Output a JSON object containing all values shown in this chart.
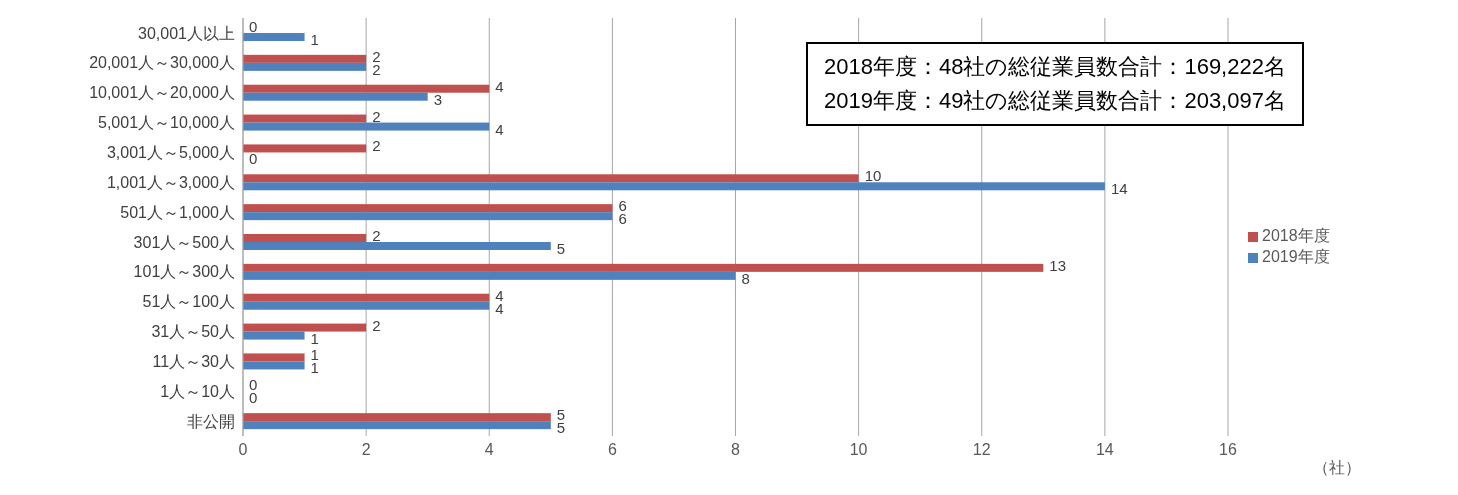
{
  "chart_data": {
    "type": "bar",
    "orientation": "horizontal",
    "categories": [
      "30,001人以上",
      "20,001人～30,000人",
      "10,001人～20,000人",
      "5,001人～10,000人",
      "3,001人～5,000人",
      "1,001人～3,000人",
      "501人～1,000人",
      "301人～500人",
      "101人～300人",
      "51人～100人",
      "31人～50人",
      "11人～30人",
      "1人～10人",
      "非公開"
    ],
    "series": [
      {
        "name": "2018年度",
        "color": "#c0504d",
        "values": [
          0,
          2,
          4,
          2,
          2,
          10,
          6,
          2,
          13,
          4,
          2,
          1,
          0,
          5
        ]
      },
      {
        "name": "2019年度",
        "color": "#4f81bd",
        "values": [
          1,
          2,
          3,
          4,
          0,
          14,
          6,
          5,
          8,
          4,
          1,
          1,
          0,
          5
        ]
      }
    ],
    "xlim": [
      0,
      16
    ],
    "xticks": [
      0,
      2,
      4,
      6,
      8,
      10,
      12,
      14,
      16
    ],
    "xlabel": "（社）",
    "grid": "x",
    "legend": "right",
    "data_labels": true,
    "annotations": [
      "2018年度：48社の総従業員数合計：169,222名",
      "2019年度：49社の総従業員数合計：203,097名"
    ]
  }
}
